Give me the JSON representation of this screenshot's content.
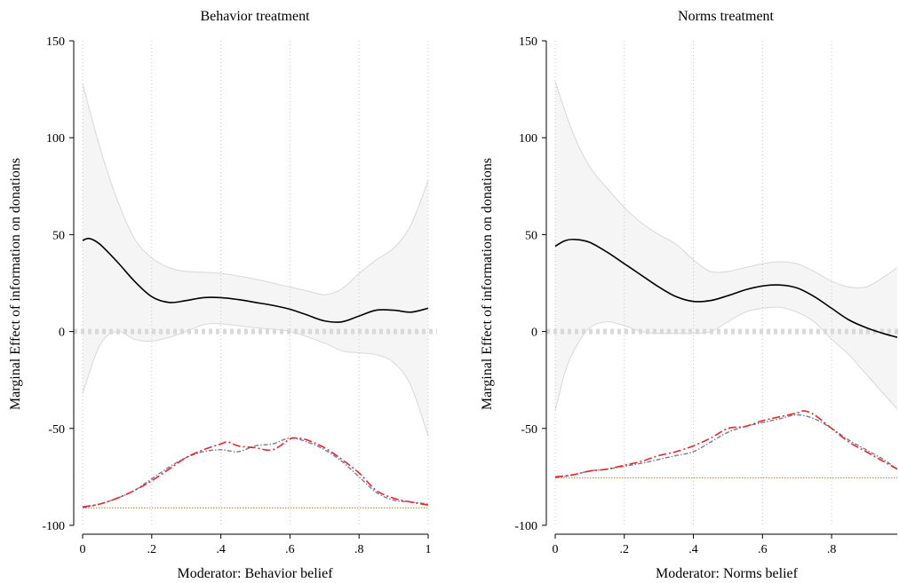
{
  "chart_data": [
    {
      "type": "line",
      "title": "Behavior treatment",
      "xlabel": "Moderator: Behavior belief",
      "ylabel": "Marginal Effect of information on donations",
      "xlim": [
        0,
        1
      ],
      "ylim": [
        -100,
        150
      ],
      "xticks": [
        0,
        0.2,
        0.4,
        0.6,
        0.8,
        1
      ],
      "xtick_labels": [
        "0",
        ".2",
        ".4",
        ".6",
        ".8",
        "1"
      ],
      "yticks": [
        -100,
        -50,
        0,
        50,
        100,
        150
      ],
      "ytick_labels": [
        "-100",
        "-50",
        "0",
        "50",
        "100",
        "150"
      ],
      "grid": "vertical dotted",
      "colors": {
        "estimate": "#000000",
        "ci_fill": "#f5f5f5",
        "ci_edge": "#d8d8d8",
        "density_a": "#e8262a",
        "density_b": "#7a7a9a",
        "baseline": "#b09a5a",
        "zero_line": "#d9d9d9"
      },
      "series": [
        {
          "role": "marginal_effect",
          "x": [
            0,
            0.02,
            0.05,
            0.1,
            0.15,
            0.2,
            0.25,
            0.3,
            0.35,
            0.4,
            0.45,
            0.5,
            0.55,
            0.6,
            0.65,
            0.7,
            0.75,
            0.8,
            0.85,
            0.9,
            0.95,
            1
          ],
          "y": [
            47,
            48,
            45,
            36,
            26,
            18,
            15,
            16,
            17.5,
            17.5,
            16.5,
            15,
            13.5,
            11.5,
            8.5,
            5.5,
            5,
            8,
            11,
            11,
            10,
            12
          ]
        },
        {
          "role": "ci_upper",
          "x": [
            0,
            0.05,
            0.1,
            0.15,
            0.2,
            0.25,
            0.3,
            0.4,
            0.5,
            0.6,
            0.65,
            0.7,
            0.75,
            0.8,
            0.85,
            0.9,
            0.95,
            1
          ],
          "y": [
            128,
            95,
            68,
            48,
            38,
            33,
            31,
            30,
            27,
            23,
            21,
            19,
            22,
            30,
            37,
            43,
            55,
            78
          ]
        },
        {
          "role": "ci_lower",
          "x": [
            0,
            0.05,
            0.1,
            0.15,
            0.2,
            0.25,
            0.3,
            0.35,
            0.4,
            0.5,
            0.6,
            0.7,
            0.75,
            0.8,
            0.85,
            0.9,
            0.95,
            1
          ],
          "y": [
            -32,
            -7,
            0,
            -4,
            -5,
            -3,
            0,
            3.5,
            4,
            2,
            0,
            -6,
            -10,
            -11,
            -12,
            -16,
            -28,
            -54
          ]
        },
        {
          "role": "density_a",
          "x": [
            0,
            0.05,
            0.1,
            0.15,
            0.2,
            0.25,
            0.3,
            0.35,
            0.4,
            0.42,
            0.45,
            0.5,
            0.55,
            0.6,
            0.62,
            0.65,
            0.7,
            0.75,
            0.8,
            0.85,
            0.9,
            0.95,
            1
          ],
          "y": [
            -90.5,
            -89,
            -86,
            -82,
            -77,
            -71,
            -65,
            -61,
            -58,
            -57,
            -59,
            -60,
            -61,
            -55.5,
            -55,
            -56,
            -60,
            -66,
            -73,
            -82,
            -86,
            -88,
            -89.5
          ]
        },
        {
          "role": "density_b",
          "x": [
            0,
            0.05,
            0.1,
            0.15,
            0.2,
            0.25,
            0.3,
            0.35,
            0.4,
            0.45,
            0.5,
            0.55,
            0.6,
            0.65,
            0.7,
            0.75,
            0.8,
            0.85,
            0.9,
            0.95,
            1
          ],
          "y": [
            -91,
            -89,
            -86,
            -82,
            -76,
            -70,
            -65,
            -62,
            -61,
            -62,
            -59,
            -58,
            -55,
            -57,
            -61,
            -67,
            -75,
            -83,
            -87,
            -88,
            -89
          ]
        },
        {
          "role": "density_baseline",
          "x": [
            0,
            1
          ],
          "y": [
            -91,
            -91
          ]
        }
      ]
    },
    {
      "type": "line",
      "title": "Norms treatment",
      "xlabel": "Moderator: Norms belief",
      "ylabel": "Marginal Effect of information on donations",
      "xlim": [
        0,
        0.99
      ],
      "ylim": [
        -100,
        150
      ],
      "xticks": [
        0,
        0.2,
        0.4,
        0.6,
        0.8
      ],
      "xtick_labels": [
        "0",
        ".2",
        ".4",
        ".6",
        ".8"
      ],
      "yticks": [
        -100,
        -50,
        0,
        50,
        100,
        150
      ],
      "ytick_labels": [
        "-100",
        "-50",
        "0",
        "50",
        "100",
        "150"
      ],
      "grid": "vertical dotted",
      "colors": {
        "estimate": "#000000",
        "ci_fill": "#f5f5f5",
        "ci_edge": "#d8d8d8",
        "density_a": "#e8262a",
        "density_b": "#7a7a9a",
        "baseline": "#b09a5a",
        "zero_line": "#d9d9d9"
      },
      "series": [
        {
          "role": "marginal_effect",
          "x": [
            0,
            0.03,
            0.06,
            0.1,
            0.15,
            0.2,
            0.25,
            0.3,
            0.35,
            0.4,
            0.45,
            0.5,
            0.55,
            0.6,
            0.65,
            0.7,
            0.75,
            0.8,
            0.85,
            0.9,
            0.95,
            0.99
          ],
          "y": [
            44,
            47,
            47.5,
            46,
            41,
            35,
            29,
            23,
            18,
            15.5,
            16,
            18.5,
            21.5,
            23.5,
            24,
            22.5,
            18,
            12,
            6,
            2,
            -1,
            -3
          ]
        },
        {
          "role": "ci_upper",
          "x": [
            0,
            0.05,
            0.1,
            0.15,
            0.2,
            0.25,
            0.3,
            0.35,
            0.4,
            0.45,
            0.5,
            0.55,
            0.6,
            0.65,
            0.7,
            0.75,
            0.8,
            0.85,
            0.9,
            0.95,
            0.99
          ],
          "y": [
            129,
            103,
            85,
            74,
            64,
            56,
            50,
            45,
            37,
            31,
            31,
            33,
            35,
            36,
            35,
            31,
            26,
            23,
            23,
            28,
            33
          ]
        },
        {
          "role": "ci_lower",
          "x": [
            0,
            0.03,
            0.06,
            0.1,
            0.15,
            0.2,
            0.25,
            0.3,
            0.35,
            0.4,
            0.45,
            0.5,
            0.55,
            0.6,
            0.65,
            0.7,
            0.75,
            0.8,
            0.85,
            0.9,
            0.95,
            0.99
          ],
          "y": [
            -41,
            -20,
            -8,
            2,
            5,
            3,
            0,
            -1,
            -1,
            -1,
            0,
            5,
            10,
            12,
            12.5,
            10,
            5,
            -4,
            -12,
            -22,
            -32,
            -40
          ]
        },
        {
          "role": "density_a",
          "x": [
            0,
            0.05,
            0.1,
            0.15,
            0.2,
            0.25,
            0.3,
            0.35,
            0.4,
            0.45,
            0.5,
            0.55,
            0.6,
            0.65,
            0.7,
            0.72,
            0.75,
            0.8,
            0.85,
            0.9,
            0.95,
            0.99
          ],
          "y": [
            -75,
            -74,
            -72,
            -71,
            -69,
            -67,
            -64,
            -62,
            -59,
            -55,
            -50,
            -49,
            -46,
            -44,
            -42,
            -41,
            -43,
            -50,
            -57,
            -62,
            -67,
            -71
          ]
        },
        {
          "role": "density_b",
          "x": [
            0,
            0.05,
            0.1,
            0.15,
            0.2,
            0.25,
            0.3,
            0.35,
            0.4,
            0.45,
            0.5,
            0.55,
            0.6,
            0.65,
            0.7,
            0.75,
            0.8,
            0.85,
            0.9,
            0.95,
            0.99
          ],
          "y": [
            -75.5,
            -74,
            -72,
            -71,
            -69.5,
            -68,
            -66,
            -64,
            -62,
            -57,
            -52,
            -49,
            -47,
            -45,
            -43,
            -45,
            -50,
            -56,
            -61,
            -66,
            -71
          ]
        },
        {
          "role": "density_baseline",
          "x": [
            0,
            0.99
          ],
          "y": [
            -75.5,
            -75.5
          ]
        }
      ]
    }
  ]
}
